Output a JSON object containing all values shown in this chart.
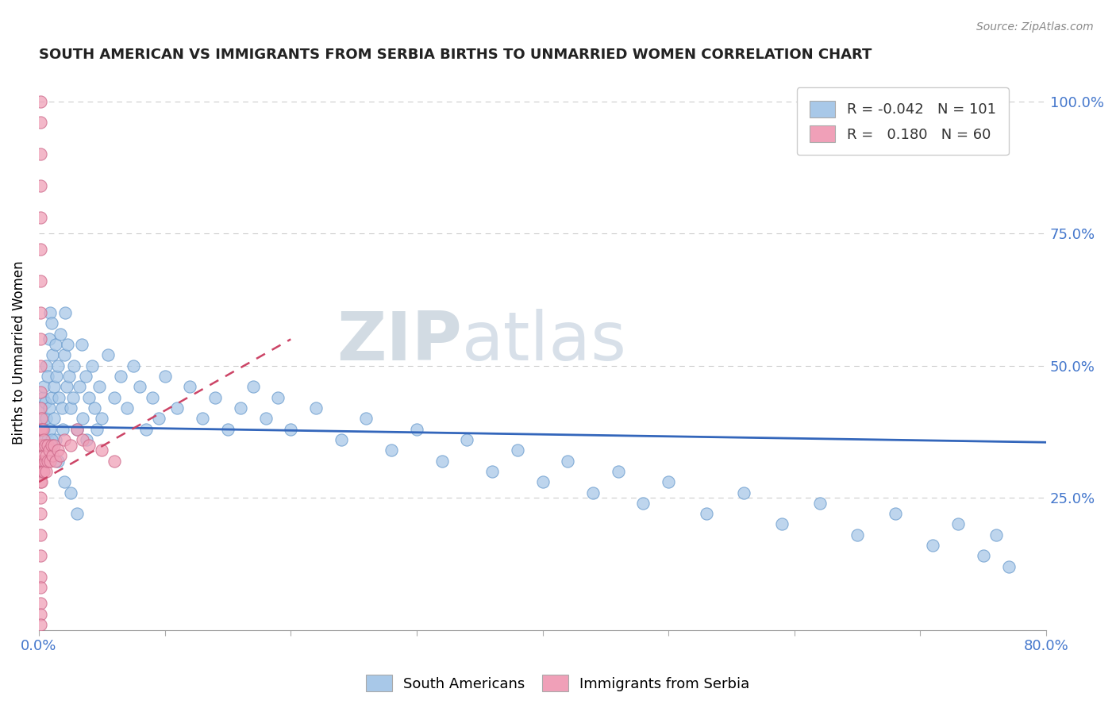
{
  "title": "SOUTH AMERICAN VS IMMIGRANTS FROM SERBIA BIRTHS TO UNMARRIED WOMEN CORRELATION CHART",
  "source": "Source: ZipAtlas.com",
  "ylabel": "Births to Unmarried Women",
  "blue_color": "#a8c8e8",
  "blue_edge": "#6699cc",
  "pink_color": "#f0a0b8",
  "pink_edge": "#cc6688",
  "trend_blue": "#3366bb",
  "trend_pink": "#cc4466",
  "watermark_color": "#d0dde8",
  "xlim": [
    0.0,
    0.8
  ],
  "ylim": [
    0.0,
    1.05
  ],
  "blue_trend_start_x": 0.0,
  "blue_trend_end_x": 0.8,
  "blue_trend_start_y": 0.385,
  "blue_trend_end_y": 0.355,
  "pink_trend_start_x": 0.0,
  "pink_trend_end_x": 0.2,
  "pink_trend_start_y": 0.28,
  "pink_trend_end_y": 0.55,
  "blue_x": [
    0.001,
    0.002,
    0.002,
    0.003,
    0.003,
    0.004,
    0.004,
    0.005,
    0.005,
    0.006,
    0.006,
    0.007,
    0.007,
    0.008,
    0.008,
    0.009,
    0.009,
    0.01,
    0.01,
    0.011,
    0.012,
    0.012,
    0.013,
    0.013,
    0.014,
    0.015,
    0.016,
    0.017,
    0.018,
    0.019,
    0.02,
    0.021,
    0.022,
    0.023,
    0.024,
    0.025,
    0.027,
    0.028,
    0.03,
    0.032,
    0.034,
    0.035,
    0.037,
    0.038,
    0.04,
    0.042,
    0.044,
    0.046,
    0.048,
    0.05,
    0.055,
    0.06,
    0.065,
    0.07,
    0.075,
    0.08,
    0.085,
    0.09,
    0.095,
    0.1,
    0.11,
    0.12,
    0.13,
    0.14,
    0.15,
    0.16,
    0.17,
    0.18,
    0.19,
    0.2,
    0.22,
    0.24,
    0.26,
    0.28,
    0.3,
    0.32,
    0.34,
    0.36,
    0.38,
    0.4,
    0.42,
    0.44,
    0.46,
    0.48,
    0.5,
    0.53,
    0.56,
    0.59,
    0.62,
    0.65,
    0.68,
    0.71,
    0.73,
    0.75,
    0.76,
    0.77,
    0.01,
    0.015,
    0.02,
    0.025,
    0.03
  ],
  "blue_y": [
    0.38,
    0.42,
    0.35,
    0.4,
    0.44,
    0.38,
    0.46,
    0.36,
    0.43,
    0.5,
    0.4,
    0.48,
    0.36,
    0.55,
    0.42,
    0.6,
    0.38,
    0.58,
    0.44,
    0.52,
    0.46,
    0.4,
    0.54,
    0.36,
    0.48,
    0.5,
    0.44,
    0.56,
    0.42,
    0.38,
    0.52,
    0.6,
    0.46,
    0.54,
    0.48,
    0.42,
    0.44,
    0.5,
    0.38,
    0.46,
    0.54,
    0.4,
    0.48,
    0.36,
    0.44,
    0.5,
    0.42,
    0.38,
    0.46,
    0.4,
    0.52,
    0.44,
    0.48,
    0.42,
    0.5,
    0.46,
    0.38,
    0.44,
    0.4,
    0.48,
    0.42,
    0.46,
    0.4,
    0.44,
    0.38,
    0.42,
    0.46,
    0.4,
    0.44,
    0.38,
    0.42,
    0.36,
    0.4,
    0.34,
    0.38,
    0.32,
    0.36,
    0.3,
    0.34,
    0.28,
    0.32,
    0.26,
    0.3,
    0.24,
    0.28,
    0.22,
    0.26,
    0.2,
    0.24,
    0.18,
    0.22,
    0.16,
    0.2,
    0.14,
    0.18,
    0.12,
    0.36,
    0.32,
    0.28,
    0.26,
    0.22
  ],
  "pink_x": [
    0.001,
    0.001,
    0.001,
    0.001,
    0.001,
    0.001,
    0.001,
    0.001,
    0.001,
    0.001,
    0.001,
    0.001,
    0.001,
    0.001,
    0.001,
    0.001,
    0.001,
    0.001,
    0.001,
    0.001,
    0.002,
    0.002,
    0.002,
    0.002,
    0.002,
    0.002,
    0.003,
    0.003,
    0.003,
    0.003,
    0.004,
    0.004,
    0.004,
    0.005,
    0.005,
    0.006,
    0.006,
    0.007,
    0.007,
    0.008,
    0.009,
    0.01,
    0.011,
    0.012,
    0.013,
    0.015,
    0.017,
    0.02,
    0.025,
    0.03,
    0.035,
    0.04,
    0.05,
    0.06,
    0.001,
    0.001,
    0.001,
    0.001,
    0.001,
    0.001
  ],
  "pink_y": [
    1.0,
    0.96,
    0.9,
    0.84,
    0.78,
    0.72,
    0.66,
    0.6,
    0.55,
    0.5,
    0.45,
    0.42,
    0.38,
    0.35,
    0.32,
    0.3,
    0.28,
    0.25,
    0.22,
    0.18,
    0.4,
    0.38,
    0.35,
    0.32,
    0.3,
    0.28,
    0.38,
    0.35,
    0.32,
    0.3,
    0.36,
    0.33,
    0.3,
    0.35,
    0.32,
    0.33,
    0.3,
    0.35,
    0.32,
    0.34,
    0.32,
    0.35,
    0.33,
    0.35,
    0.32,
    0.34,
    0.33,
    0.36,
    0.35,
    0.38,
    0.36,
    0.35,
    0.34,
    0.32,
    0.14,
    0.1,
    0.08,
    0.05,
    0.03,
    0.01
  ]
}
